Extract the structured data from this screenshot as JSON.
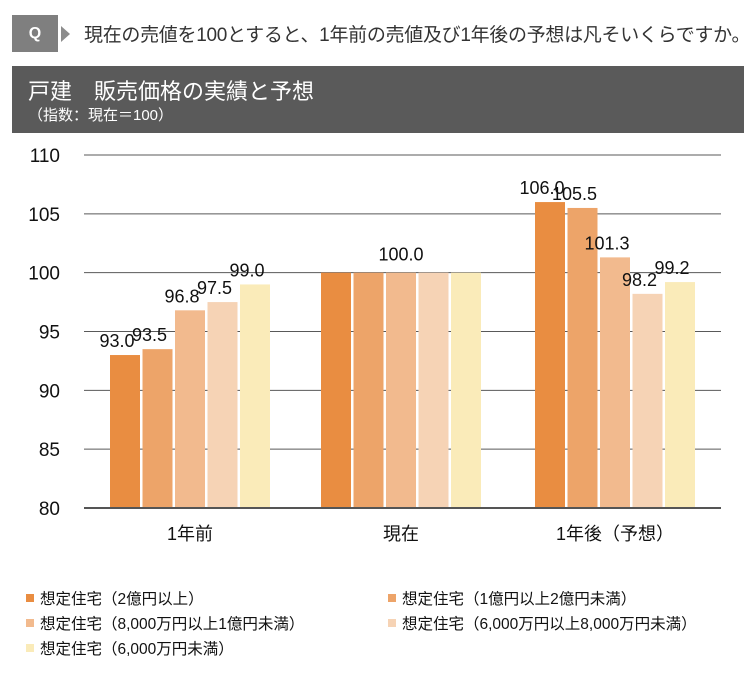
{
  "question": {
    "badge": "Q",
    "text": "現在の売値を100とすると、1年前の売値及び1年後の予想は凡そいくらですか。"
  },
  "header": {
    "title": "戸建　販売価格の実績と予想",
    "subtitle": "（指数：現在＝100）"
  },
  "chart_data": {
    "type": "bar",
    "title": "戸建　販売価格の実績と予想",
    "subtitle": "（指数：現在＝100）",
    "xlabel": "",
    "ylabel": "",
    "ylim": [
      80,
      110
    ],
    "yticks": [
      80,
      85,
      90,
      95,
      100,
      105,
      110
    ],
    "grid": true,
    "legend_position": "bottom",
    "categories": [
      "1年前",
      "現在",
      "1年後（予想）"
    ],
    "series": [
      {
        "name": "想定住宅（2億円以上）",
        "color": "#E98D41",
        "values": [
          93.0,
          100.0,
          106.0
        ]
      },
      {
        "name": "想定住宅（1億円以上2億円未満）",
        "color": "#EDA469",
        "values": [
          93.5,
          100.0,
          105.5
        ]
      },
      {
        "name": "想定住宅（8,000万円以上1億円未満）",
        "color": "#F2BA8E",
        "values": [
          96.8,
          100.0,
          101.3
        ]
      },
      {
        "name": "想定住宅（6,000万円以上8,000万円未満）",
        "color": "#F6D3B5",
        "values": [
          97.5,
          100.0,
          98.2
        ]
      },
      {
        "name": "想定住宅（6,000万円未満）",
        "color": "#FAEBB9",
        "values": [
          99.0,
          100.0,
          99.2
        ]
      }
    ],
    "data_labels": [
      [
        "93.0",
        "93.5",
        "96.8",
        "97.5",
        "99.0"
      ],
      [
        "100.0"
      ],
      [
        "106.0",
        "105.5",
        "101.3",
        "98.2",
        "99.2"
      ]
    ]
  },
  "colors": {
    "badge": "#7F7F7F",
    "band": "#5A5A5A",
    "grid": "#595959"
  }
}
